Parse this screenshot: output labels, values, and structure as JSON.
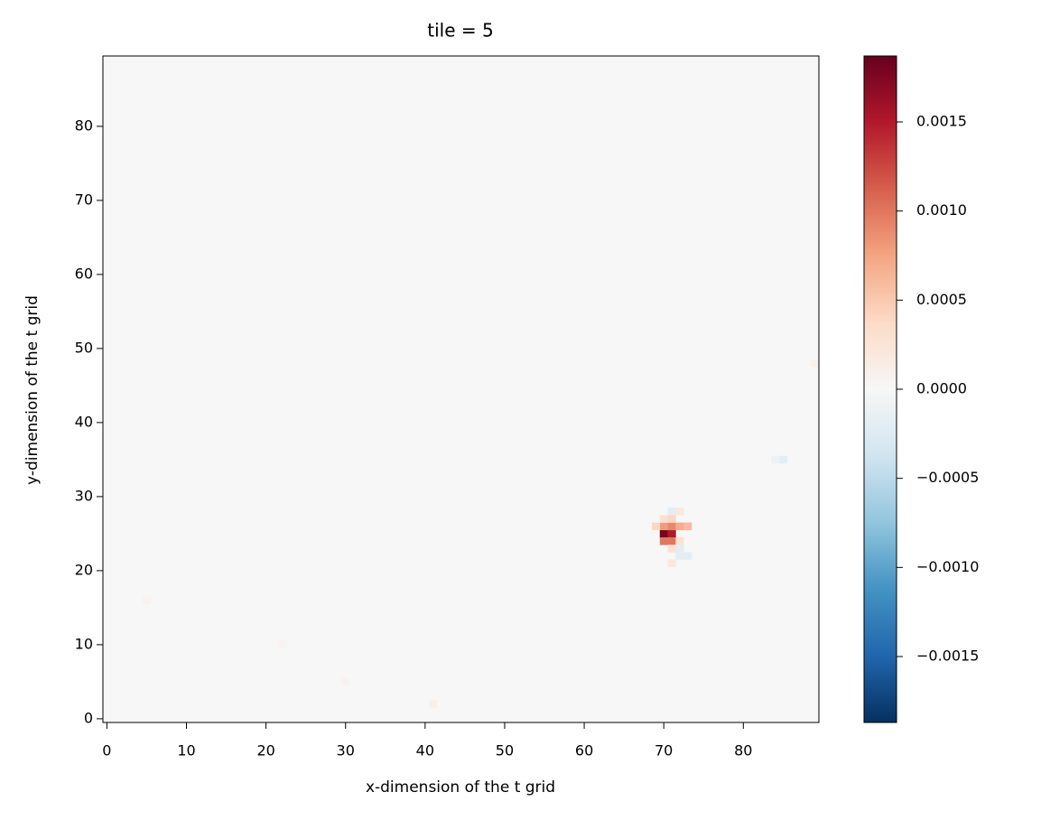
{
  "chart_data": {
    "type": "heatmap",
    "title": "tile = 5",
    "x_label": "x-dimension of the t grid",
    "y_label": "y-dimension of the t grid",
    "xlim": [
      -0.5,
      89.5
    ],
    "ylim": [
      -0.5,
      89.5
    ],
    "xticks": [
      0,
      10,
      20,
      30,
      40,
      50,
      60,
      70,
      80
    ],
    "yticks": [
      0,
      10,
      20,
      30,
      40,
      50,
      60,
      70,
      80
    ],
    "colormap": "RdBu_r",
    "clim": [
      -0.00187,
      0.00187
    ],
    "cticks": [
      {
        "value": -0.0015,
        "label": "−0.0015"
      },
      {
        "value": -0.001,
        "label": "−0.0010"
      },
      {
        "value": -0.0005,
        "label": "−0.0005"
      },
      {
        "value": 0,
        "label": "0.0000"
      },
      {
        "value": 0.0005,
        "label": "0.0005"
      },
      {
        "value": 0.001,
        "label": "0.0010"
      },
      {
        "value": 0.0015,
        "label": "0.0015"
      }
    ],
    "x": [
      70,
      71,
      70,
      71,
      72,
      73,
      69,
      70,
      71,
      71,
      72,
      72,
      73,
      72,
      71,
      72,
      70,
      71,
      71,
      85,
      84,
      89,
      41,
      5,
      22,
      30
    ],
    "y": [
      25,
      25,
      26,
      26,
      26,
      26,
      26,
      24,
      24,
      23,
      24,
      22,
      22,
      23,
      28,
      28,
      27,
      27,
      21,
      35,
      35,
      48,
      2,
      16,
      10,
      5
    ],
    "values": [
      0.0018,
      0.0015,
      0.0008,
      0.0009,
      0.0007,
      0.0006,
      0.0004,
      0.001,
      0.001,
      0.0003,
      0.0003,
      -0.0002,
      -0.0002,
      -0.0002,
      -0.0002,
      0.0002,
      0.0003,
      0.0004,
      0.0002,
      -0.0002,
      -0.0001,
      0.0001,
      0.0001,
      5e-05,
      5e-05,
      5e-05
    ]
  }
}
